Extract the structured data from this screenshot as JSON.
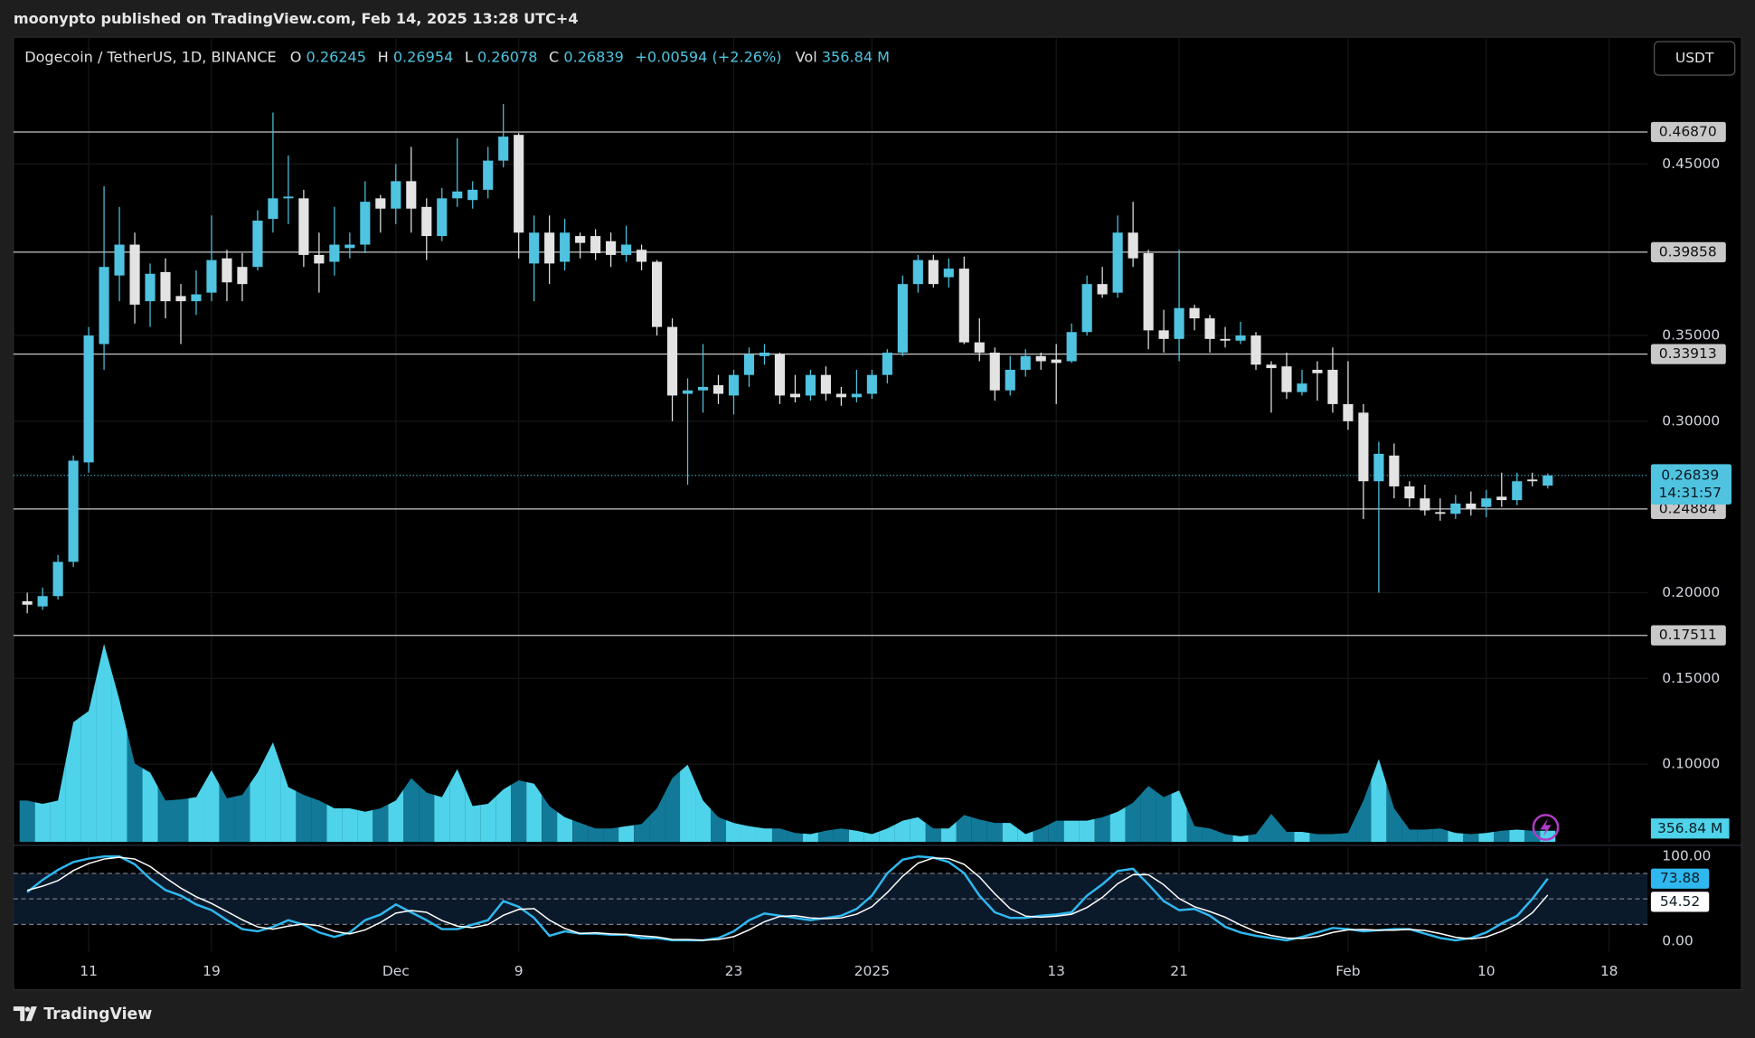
{
  "header": {
    "published": "moonypto published on TradingView.com, Feb 14, 2025 13:28 UTC+4",
    "currency": "USDT",
    "brand": "TradingView"
  },
  "chart_data": {
    "type": "candlestick",
    "legend": {
      "symbol": "Dogecoin / TetherUS, 1D, BINANCE",
      "open": "O",
      "high": "H",
      "low": "L",
      "close": "C",
      "change": "+0.00594 (+2.26%)",
      "volume": "Vol"
    },
    "grid": true,
    "xlim": [
      -0.9,
      105.5
    ],
    "xticks": [
      {
        "value": 4,
        "label": "11"
      },
      {
        "value": 12,
        "label": "19"
      },
      {
        "value": 24,
        "label": "Dec"
      },
      {
        "value": 32,
        "label": "9"
      },
      {
        "value": 46,
        "label": "23"
      },
      {
        "value": 55,
        "label": "2025"
      },
      {
        "value": 67,
        "label": "13"
      },
      {
        "value": 75,
        "label": "21"
      },
      {
        "value": 86,
        "label": "Feb"
      },
      {
        "value": 95,
        "label": "10"
      },
      {
        "value": 103,
        "label": "18"
      }
    ],
    "ylim": [
      0.054,
      0.524
    ],
    "yticks": [
      {
        "value": 0.45,
        "label": "0.45000"
      },
      {
        "value": 0.35,
        "label": "0.35000"
      },
      {
        "value": 0.3,
        "label": "0.30000"
      },
      {
        "value": 0.2,
        "label": "0.20000"
      },
      {
        "value": 0.15,
        "label": "0.15000"
      },
      {
        "value": 0.1,
        "label": "0.10000"
      }
    ],
    "up_color": "#4fc3e0",
    "down_color": "#e3e3e3",
    "open": [
      0.195,
      0.192,
      0.198,
      0.218,
      0.276,
      0.345,
      0.385,
      0.403,
      0.37,
      0.387,
      0.373,
      0.37,
      0.375,
      0.395,
      0.39,
      0.39,
      0.418,
      0.43,
      0.43,
      0.397,
      0.393,
      0.401,
      0.403,
      0.43,
      0.424,
      0.44,
      0.425,
      0.408,
      0.43,
      0.429,
      0.435,
      0.452,
      0.467,
      0.392,
      0.41,
      0.393,
      0.408,
      0.408,
      0.405,
      0.397,
      0.4,
      0.393,
      0.355,
      0.316,
      0.318,
      0.321,
      0.315,
      0.327,
      0.338,
      0.339,
      0.316,
      0.315,
      0.327,
      0.316,
      0.314,
      0.316,
      0.327,
      0.34,
      0.38,
      0.394,
      0.384,
      0.389,
      0.346,
      0.34,
      0.318,
      0.33,
      0.338,
      0.336,
      0.335,
      0.352,
      0.38,
      0.375,
      0.41,
      0.398,
      0.353,
      0.348,
      0.366,
      0.36,
      0.348,
      0.347,
      0.35,
      0.333,
      0.332,
      0.317,
      0.33,
      0.33,
      0.31,
      0.305,
      0.265,
      0.28,
      0.262,
      0.255,
      0.247,
      0.246,
      0.252,
      0.25,
      0.256,
      0.254,
      0.266,
      0.26245
    ],
    "high": [
      0.2,
      0.203,
      0.222,
      0.28,
      0.355,
      0.437,
      0.425,
      0.41,
      0.392,
      0.395,
      0.38,
      0.388,
      0.42,
      0.4,
      0.398,
      0.423,
      0.48,
      0.455,
      0.435,
      0.41,
      0.425,
      0.41,
      0.44,
      0.432,
      0.45,
      0.46,
      0.43,
      0.436,
      0.465,
      0.44,
      0.46,
      0.485,
      0.468,
      0.42,
      0.42,
      0.418,
      0.41,
      0.412,
      0.41,
      0.414,
      0.403,
      0.394,
      0.36,
      0.325,
      0.345,
      0.327,
      0.33,
      0.343,
      0.345,
      0.34,
      0.327,
      0.33,
      0.332,
      0.32,
      0.33,
      0.33,
      0.342,
      0.385,
      0.397,
      0.397,
      0.395,
      0.396,
      0.36,
      0.343,
      0.338,
      0.342,
      0.34,
      0.345,
      0.357,
      0.385,
      0.39,
      0.42,
      0.428,
      0.4,
      0.365,
      0.4,
      0.368,
      0.362,
      0.355,
      0.358,
      0.352,
      0.335,
      0.34,
      0.33,
      0.335,
      0.343,
      0.335,
      0.31,
      0.288,
      0.287,
      0.265,
      0.263,
      0.255,
      0.257,
      0.259,
      0.26,
      0.27,
      0.27,
      0.27,
      0.26954
    ],
    "low": [
      0.188,
      0.19,
      0.196,
      0.215,
      0.27,
      0.33,
      0.37,
      0.357,
      0.355,
      0.36,
      0.345,
      0.362,
      0.37,
      0.37,
      0.37,
      0.388,
      0.41,
      0.415,
      0.39,
      0.375,
      0.385,
      0.395,
      0.398,
      0.41,
      0.415,
      0.41,
      0.394,
      0.405,
      0.425,
      0.424,
      0.43,
      0.448,
      0.395,
      0.37,
      0.38,
      0.388,
      0.395,
      0.394,
      0.39,
      0.393,
      0.388,
      0.35,
      0.3,
      0.263,
      0.305,
      0.31,
      0.304,
      0.32,
      0.333,
      0.31,
      0.311,
      0.312,
      0.312,
      0.309,
      0.311,
      0.313,
      0.322,
      0.338,
      0.375,
      0.378,
      0.378,
      0.345,
      0.335,
      0.312,
      0.315,
      0.326,
      0.33,
      0.31,
      0.334,
      0.35,
      0.372,
      0.372,
      0.39,
      0.342,
      0.34,
      0.335,
      0.353,
      0.34,
      0.343,
      0.345,
      0.33,
      0.305,
      0.313,
      0.315,
      0.312,
      0.305,
      0.295,
      0.243,
      0.2,
      0.255,
      0.25,
      0.245,
      0.242,
      0.243,
      0.245,
      0.244,
      0.25,
      0.251,
      0.262,
      0.26078
    ],
    "close": [
      0.193,
      0.198,
      0.218,
      0.277,
      0.35,
      0.39,
      0.403,
      0.368,
      0.386,
      0.37,
      0.37,
      0.374,
      0.394,
      0.381,
      0.38,
      0.417,
      0.43,
      0.431,
      0.397,
      0.392,
      0.403,
      0.403,
      0.428,
      0.424,
      0.44,
      0.424,
      0.408,
      0.43,
      0.434,
      0.435,
      0.452,
      0.466,
      0.41,
      0.41,
      0.392,
      0.41,
      0.404,
      0.398,
      0.397,
      0.403,
      0.393,
      0.355,
      0.315,
      0.318,
      0.32,
      0.316,
      0.327,
      0.339,
      0.34,
      0.315,
      0.314,
      0.327,
      0.316,
      0.314,
      0.316,
      0.327,
      0.34,
      0.38,
      0.394,
      0.38,
      0.389,
      0.346,
      0.34,
      0.318,
      0.33,
      0.338,
      0.335,
      0.334,
      0.352,
      0.38,
      0.374,
      0.41,
      0.395,
      0.353,
      0.348,
      0.366,
      0.36,
      0.348,
      0.347,
      0.35,
      0.333,
      0.331,
      0.317,
      0.322,
      0.328,
      0.31,
      0.3,
      0.265,
      0.281,
      0.262,
      0.255,
      0.248,
      0.246,
      0.252,
      0.249,
      0.255,
      0.254,
      0.265,
      0.265,
      0.26839
    ],
    "levels": [
      {
        "value": 0.4687,
        "label": "0.46870"
      },
      {
        "value": 0.39858,
        "label": "0.39858"
      },
      {
        "value": 0.33913,
        "label": "0.33913"
      },
      {
        "value": 0.24884,
        "label": "0.24884"
      },
      {
        "value": 0.17511,
        "label": "0.17511"
      }
    ],
    "level_color": "#c8c8c8",
    "countdown": "14:31:57",
    "volume": {
      "ylim": [
        0,
        6500
      ],
      "up_color": "#4ed3ea",
      "down_color": "#127a98",
      "values": [
        1321,
        1214,
        1321,
        3820,
        4177,
        6319,
        4534,
        2499,
        2213,
        1321,
        1357,
        1428,
        2285,
        1392,
        1499,
        2213,
        3177,
        1749,
        1499,
        1321,
        1071,
        1071,
        964,
        1071,
        1321,
        2035,
        1571,
        1428,
        2321,
        1142,
        1214,
        1678,
        1964,
        1856,
        1142,
        785,
        607,
        428,
        428,
        500,
        571,
        1071,
        2035,
        2463,
        1321,
        785,
        607,
        500,
        428,
        428,
        286,
        250,
        357,
        428,
        357,
        250,
        428,
        678,
        785,
        428,
        428,
        857,
        714,
        607,
        607,
        250,
        428,
        678,
        678,
        678,
        785,
        964,
        1250,
        1785,
        1428,
        1642,
        500,
        428,
        250,
        179,
        250,
        893,
        321,
        321,
        250,
        250,
        286,
        1321,
        2642,
        1071,
        393,
        393,
        428,
        286,
        250,
        286,
        357,
        393,
        357,
        356.84
      ],
      "value_labels": [
        null,
        null,
        null,
        null,
        null,
        null,
        null,
        null,
        null,
        null,
        null,
        null,
        null,
        null,
        null,
        null,
        null,
        null,
        null,
        null,
        null,
        null,
        null,
        null,
        null,
        null,
        null,
        null,
        null,
        null,
        null,
        null,
        null,
        null,
        null,
        null,
        null,
        null,
        null,
        null,
        null,
        null,
        null,
        null,
        null,
        null,
        null,
        null,
        null,
        null,
        null,
        null,
        null,
        null,
        null,
        null,
        null,
        null,
        null,
        null,
        null,
        null,
        null,
        null,
        null,
        null,
        null,
        null,
        null,
        null,
        null,
        null,
        null,
        null,
        null,
        null,
        null,
        null,
        null,
        null,
        null,
        null,
        null,
        null,
        null,
        null,
        null,
        null,
        null,
        null,
        null,
        null,
        null,
        null,
        null,
        null,
        null,
        null,
        null,
        "356.84 M"
      ]
    },
    "oscillator": {
      "ylim": [
        -12,
        110.5
      ],
      "yticks": [
        {
          "value": 100,
          "label": "100.00"
        },
        {
          "value": 0,
          "label": "0.00"
        }
      ],
      "bands": [
        80,
        50,
        20
      ],
      "band_fill": "#0b1a2b",
      "series": [
        {
          "color": "#2fb8ef",
          "values": [
            57.9,
            72.4,
            84.2,
            93.4,
            97.4,
            100,
            100,
            90.8,
            73.7,
            60.5,
            53.9,
            43.4,
            36.8,
            25,
            14.5,
            11.8,
            17.1,
            25,
            19.7,
            10.5,
            5.3,
            10.5,
            25,
            31.6,
            43.4,
            34.2,
            25,
            14.5,
            14.5,
            19.7,
            25,
            47.4,
            40.8,
            27.6,
            6.6,
            11.8,
            9.2,
            9.2,
            7.9,
            7.9,
            3.9,
            3.9,
            1.3,
            1.3,
            1.3,
            3.9,
            11.8,
            25,
            32.9,
            30.3,
            27.6,
            25,
            27.6,
            30.3,
            38.2,
            53.9,
            80.3,
            96.1,
            100,
            98.7,
            93.4,
            80.3,
            53.9,
            34.2,
            27.6,
            27.6,
            30.3,
            31.6,
            34.2,
            53.9,
            67.1,
            82.9,
            85.5,
            67.1,
            47.4,
            36.8,
            38.2,
            30.3,
            17.1,
            10.5,
            6.6,
            3.9,
            1.3,
            5.3,
            10.5,
            15.8,
            14.5,
            11.8,
            13.2,
            14.5,
            14.5,
            9.2,
            3.9,
            1.3,
            3.9,
            10.5,
            21.1,
            30,
            50,
            73.88
          ]
        },
        {
          "color": "#ffffff",
          "values": [
            60,
            65,
            71.5,
            83.3,
            91.7,
            96.9,
            99.1,
            96.9,
            88.2,
            75,
            62.7,
            52.6,
            44.7,
            35.1,
            25.4,
            17.1,
            14.5,
            18,
            20.6,
            18.4,
            11.8,
            8.8,
            13.6,
            22.4,
            33.3,
            36.4,
            34.2,
            24.6,
            18,
            16.2,
            19.7,
            30.7,
            37.7,
            38.6,
            25,
            15.3,
            9.2,
            10.1,
            8.8,
            8.3,
            6.6,
            5.2,
            2.4,
            2.2,
            1.3,
            2.2,
            5.7,
            13.6,
            23.2,
            29.4,
            30.3,
            27.6,
            26.7,
            27.6,
            32,
            40.8,
            57.5,
            76.8,
            92.1,
            98.3,
            97.4,
            90.8,
            75.9,
            56.1,
            38.6,
            29.8,
            28.5,
            29.8,
            32,
            39.9,
            51.7,
            68,
            78.5,
            78.5,
            66.7,
            50.4,
            40.8,
            35.1,
            28.5,
            19.3,
            11.4,
            7,
            3.9,
            3.5,
            5.7,
            10.5,
            13.6,
            14,
            13.2,
            13.2,
            14.1,
            12.7,
            9.2,
            4.8,
            3,
            5.2,
            11.8,
            20.5,
            33.7,
            54.52
          ]
        }
      ]
    }
  }
}
